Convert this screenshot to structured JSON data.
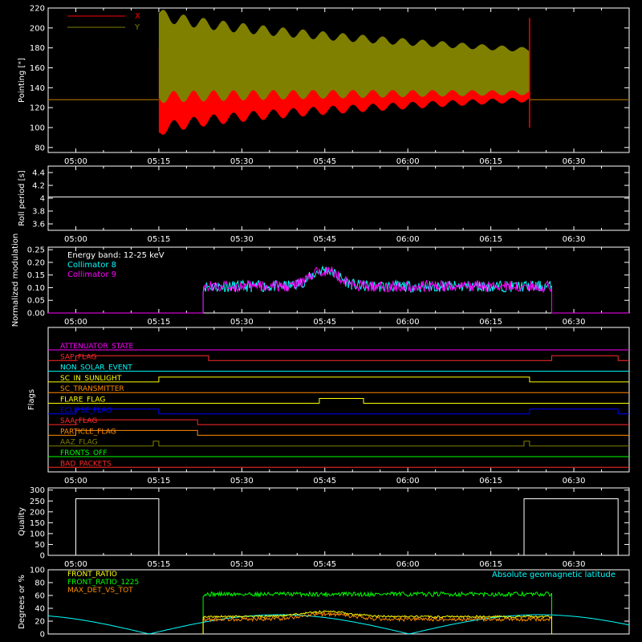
{
  "colors": {
    "background": "#000000",
    "axis": "#ffffff",
    "x_series": "#ff0000",
    "y_series": "#808000",
    "roll": "#ffffff",
    "coll8": "#00ffff",
    "coll9": "#ff00ff",
    "quality": "#ffffff",
    "front_ratio": "#ffff00",
    "front_ratio_1225": "#00ff00",
    "max_det": "#ff8c00",
    "geomag": "#00ffff"
  },
  "chart_data": [
    {
      "type": "area",
      "ylabel": "Pointing [\"]",
      "x_ticks": [
        "05:00",
        "05:15",
        "05:30",
        "05:45",
        "06:00",
        "06:15",
        "06:30"
      ],
      "y_ticks": [
        80,
        100,
        120,
        140,
        160,
        180,
        200,
        220
      ],
      "ylim": [
        75,
        220
      ],
      "grid": false,
      "legend_position": "top-left",
      "series": [
        {
          "name": "X",
          "baseline": 128,
          "active_range": [
            "05:15",
            "06:22"
          ],
          "envelope_low_start": 95,
          "envelope_low_end": 128,
          "envelope_high_start": 180,
          "envelope_high_end": 170
        },
        {
          "name": "Y",
          "baseline": 128,
          "active_range": [
            "05:15",
            "06:22"
          ],
          "envelope_low_start": 130,
          "envelope_low_end": 135,
          "envelope_high_start": 215,
          "envelope_high_end": 178
        }
      ]
    },
    {
      "type": "line",
      "ylabel": "Roll period [s]",
      "x_ticks": [
        "05:00",
        "05:15",
        "05:30",
        "05:45",
        "06:00",
        "06:15",
        "06:30"
      ],
      "y_ticks": [
        3.6,
        3.8,
        4.0,
        4.2,
        4.4
      ],
      "ylim": [
        3.5,
        4.5
      ],
      "series": [
        {
          "name": "",
          "value": 4.02
        }
      ]
    },
    {
      "type": "line",
      "ylabel": "Normalized modulation",
      "x_ticks": [
        "05:00",
        "05:15",
        "05:30",
        "05:45",
        "06:00",
        "06:15",
        "06:30"
      ],
      "y_ticks": [
        "0.00",
        "0.05",
        "0.10",
        "0.15",
        "0.20",
        "0.25"
      ],
      "ylim": [
        0,
        0.26
      ],
      "annotation": "Energy band: 12-25 keV",
      "active_range": [
        "05:23",
        "06:26"
      ],
      "series": [
        {
          "name": "Collimator 8",
          "mean": 0.105,
          "peak_time": "05:45",
          "peak": 0.17
        },
        {
          "name": "Collimator 9",
          "mean": 0.105,
          "peak_time": "05:45",
          "peak": 0.17
        }
      ]
    },
    {
      "type": "line",
      "ylabel": "Flags",
      "x_ticks": [
        "05:00",
        "05:15",
        "05:30",
        "05:45",
        "06:00",
        "06:15",
        "06:30"
      ],
      "flags": [
        {
          "name": "ATTENUATOR_STATE",
          "color": "#ff00ff",
          "high": []
        },
        {
          "name": "SAP_FLAG",
          "color": "#ff2a2a",
          "high": [
            [
              "05:00",
              "05:24"
            ],
            [
              "06:26",
              "06:38"
            ]
          ]
        },
        {
          "name": "NON_SOLAR_EVENT",
          "color": "#00ffff",
          "high": []
        },
        {
          "name": "SC_IN_SUNLIGHT",
          "color": "#ffff00",
          "high": [
            [
              "05:15",
              "06:22"
            ]
          ]
        },
        {
          "name": "SC_TRANSMITTER",
          "color": "#ff8c00",
          "high": []
        },
        {
          "name": "FLARE_FLAG",
          "color": "#ffff00",
          "high": [
            [
              "05:44",
              "05:52"
            ]
          ]
        },
        {
          "name": "ECLIPSE_FLAG",
          "color": "#0000ff",
          "high": [
            [
              "05:00",
              "05:15"
            ],
            [
              "06:22",
              "06:38"
            ]
          ]
        },
        {
          "name": "SAA_FLAG",
          "color": "#ff2a2a",
          "high": [
            [
              "05:00",
              "05:22"
            ]
          ]
        },
        {
          "name": "PARTICLE_FLAG",
          "color": "#ff8c00",
          "high": [
            [
              "05:00",
              "05:22"
            ]
          ]
        },
        {
          "name": "AAZ_FLAG",
          "color": "#808000",
          "high": [
            [
              "05:14",
              "05:15"
            ],
            [
              "06:21",
              "06:22"
            ]
          ]
        },
        {
          "name": "FRONTS_OFF",
          "color": "#00ff00",
          "high": []
        },
        {
          "name": "BAD_PACKETS",
          "color": "#ff2a2a",
          "high": []
        }
      ]
    },
    {
      "type": "line",
      "ylabel": "Quality",
      "x_ticks": [
        "05:00",
        "05:15",
        "05:30",
        "05:45",
        "06:00",
        "06:15",
        "06:30"
      ],
      "y_ticks": [
        0,
        50,
        100,
        150,
        200,
        250,
        300
      ],
      "ylim": [
        0,
        310
      ],
      "series": [
        {
          "name": "",
          "high_value": 260,
          "high": [
            [
              "05:00",
              "05:15"
            ],
            [
              "06:21",
              "06:38"
            ]
          ]
        }
      ]
    },
    {
      "type": "line",
      "ylabel": "Degrees or %",
      "x_ticks": [
        "05:00",
        "05:15",
        "05:30",
        "05:45",
        "06:00",
        "06:15",
        "06:30"
      ],
      "y_ticks": [
        0,
        20,
        40,
        60,
        80,
        100
      ],
      "ylim": [
        0,
        100
      ],
      "active_range": [
        "05:23",
        "06:26"
      ],
      "series": [
        {
          "name": "FRONT_RATIO",
          "mean": 27
        },
        {
          "name": "FRONT_RATIO_1225",
          "mean": 62
        },
        {
          "name": "MAX_DET_VS_TOT",
          "mean": 23
        },
        {
          "name": "Absolute geomagnetic latitude",
          "min": 0,
          "max": 30
        }
      ]
    }
  ]
}
